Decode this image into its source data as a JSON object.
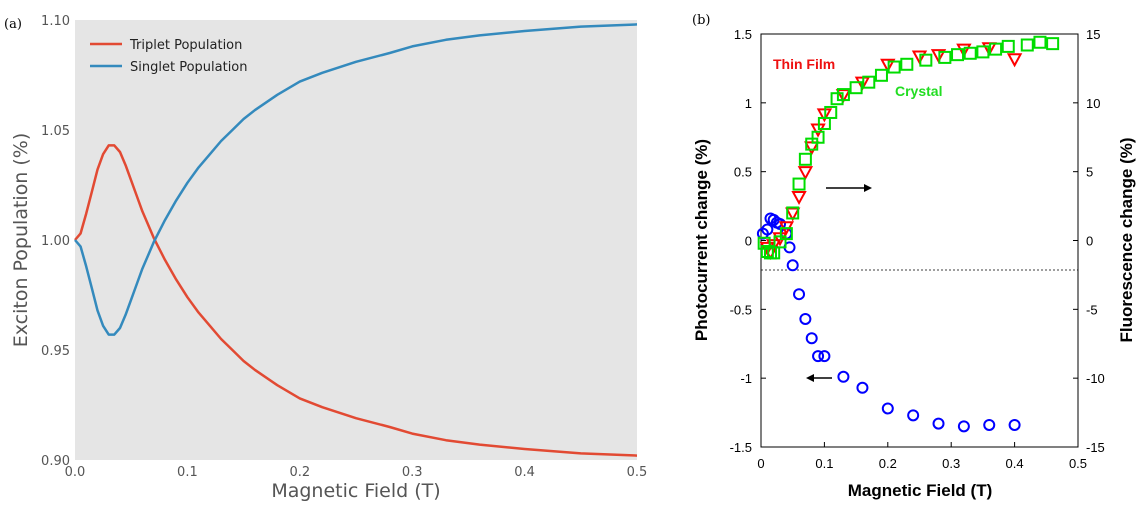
{
  "chart_data": [
    {
      "panel_label": "(a)",
      "type": "line",
      "xlabel": "Magnetic Field (T)",
      "ylabel": "Exciton Population (%)",
      "xlim": [
        0.0,
        0.5
      ],
      "ylim": [
        0.9,
        1.1
      ],
      "xticks": [
        "0.0",
        "0.1",
        "0.2",
        "0.3",
        "0.4",
        "0.5"
      ],
      "yticks": [
        "0.90",
        "0.95",
        "1.00",
        "1.05",
        "1.10"
      ],
      "grid": false,
      "background": "#e5e5e5",
      "legend_position": "top-left",
      "series": [
        {
          "name": "Triplet Population",
          "color": "#e24a33",
          "x": [
            0.0,
            0.005,
            0.01,
            0.015,
            0.02,
            0.025,
            0.03,
            0.035,
            0.04,
            0.045,
            0.05,
            0.055,
            0.06,
            0.065,
            0.07,
            0.075,
            0.08,
            0.09,
            0.1,
            0.11,
            0.12,
            0.13,
            0.14,
            0.15,
            0.16,
            0.18,
            0.2,
            0.22,
            0.25,
            0.28,
            0.3,
            0.33,
            0.36,
            0.4,
            0.45,
            0.5
          ],
          "y": [
            1.0,
            1.003,
            1.012,
            1.022,
            1.032,
            1.039,
            1.043,
            1.043,
            1.04,
            1.034,
            1.027,
            1.02,
            1.013,
            1.007,
            1.001,
            0.996,
            0.991,
            0.982,
            0.974,
            0.967,
            0.961,
            0.955,
            0.95,
            0.945,
            0.941,
            0.934,
            0.928,
            0.924,
            0.919,
            0.915,
            0.912,
            0.909,
            0.907,
            0.905,
            0.903,
            0.902
          ]
        },
        {
          "name": "Singlet Population",
          "color": "#348abd",
          "x": [
            0.0,
            0.005,
            0.01,
            0.015,
            0.02,
            0.025,
            0.03,
            0.035,
            0.04,
            0.045,
            0.05,
            0.055,
            0.06,
            0.065,
            0.07,
            0.075,
            0.08,
            0.09,
            0.1,
            0.11,
            0.12,
            0.13,
            0.14,
            0.15,
            0.16,
            0.18,
            0.2,
            0.22,
            0.25,
            0.28,
            0.3,
            0.33,
            0.36,
            0.4,
            0.45,
            0.5
          ],
          "y": [
            1.0,
            0.997,
            0.988,
            0.978,
            0.968,
            0.961,
            0.957,
            0.957,
            0.96,
            0.966,
            0.973,
            0.98,
            0.987,
            0.993,
            0.999,
            1.004,
            1.009,
            1.018,
            1.026,
            1.033,
            1.039,
            1.045,
            1.05,
            1.055,
            1.059,
            1.066,
            1.072,
            1.076,
            1.081,
            1.085,
            1.088,
            1.091,
            1.093,
            1.095,
            1.097,
            1.098
          ]
        }
      ]
    },
    {
      "panel_label": "(b)",
      "type": "scatter",
      "xlabel": "Magnetic Field (T)",
      "ylabel": "Photocurrent change (%)",
      "y2label": "Fluorescence change (%)",
      "xlim": [
        0,
        0.5
      ],
      "ylim": [
        -1.5,
        1.5
      ],
      "y2lim": [
        -15,
        15
      ],
      "xticks": [
        "0",
        "0.1",
        "0.2",
        "0.3",
        "0.4",
        "0.5"
      ],
      "yticks": [
        "-1.5",
        "-1",
        "-0.5",
        "0",
        "0.5",
        "1",
        "1.5"
      ],
      "y2ticks": [
        "-15",
        "-10",
        "-5",
        "0",
        "5",
        "10",
        "15"
      ],
      "zero_line": true,
      "annotations": {
        "thin_film": "Thin Film",
        "crystal": "Crystal"
      },
      "series": [
        {
          "name": "Photocurrent",
          "marker": "circle",
          "color": "#0000ff",
          "axis": "left",
          "x": [
            0.003,
            0.01,
            0.015,
            0.02,
            0.025,
            0.03,
            0.04,
            0.045,
            0.05,
            0.06,
            0.07,
            0.08,
            0.09,
            0.1,
            0.13,
            0.16,
            0.2,
            0.24,
            0.28,
            0.32,
            0.36,
            0.4
          ],
          "y": [
            0.05,
            0.08,
            0.16,
            0.15,
            0.13,
            0.12,
            0.05,
            -0.05,
            -0.18,
            -0.39,
            -0.57,
            -0.71,
            -0.84,
            -0.84,
            -0.99,
            -1.07,
            -1.22,
            -1.27,
            -1.33,
            -1.35,
            -1.34,
            -1.34
          ]
        },
        {
          "name": "Thin Film",
          "marker": "triangle-down",
          "color": "#ff0000",
          "axis": "right",
          "x": [
            0.01,
            0.015,
            0.02,
            0.03,
            0.04,
            0.05,
            0.06,
            0.07,
            0.08,
            0.09,
            0.1,
            0.13,
            0.16,
            0.2,
            0.25,
            0.28,
            0.32,
            0.36,
            0.4
          ],
          "y": [
            -0.5,
            -0.8,
            -0.3,
            0.2,
            1.0,
            2.0,
            3.2,
            5.0,
            6.8,
            8.1,
            9.2,
            10.6,
            11.5,
            12.8,
            13.4,
            13.5,
            13.9,
            14.0,
            13.2
          ]
        },
        {
          "name": "Crystal",
          "marker": "square",
          "color": "#00dd00",
          "axis": "right",
          "x": [
            0.005,
            0.01,
            0.015,
            0.02,
            0.03,
            0.04,
            0.05,
            0.06,
            0.07,
            0.08,
            0.09,
            0.1,
            0.11,
            0.12,
            0.13,
            0.15,
            0.17,
            0.19,
            0.21,
            0.23,
            0.26,
            0.29,
            0.31,
            0.33,
            0.35,
            0.37,
            0.39,
            0.42,
            0.44,
            0.46
          ],
          "y": [
            -0.2,
            -0.8,
            -0.9,
            -0.9,
            -0.1,
            0.5,
            2.0,
            4.1,
            5.9,
            7.0,
            7.5,
            8.5,
            9.3,
            10.3,
            10.6,
            11.1,
            11.5,
            12.0,
            12.6,
            12.8,
            13.1,
            13.3,
            13.5,
            13.6,
            13.7,
            13.9,
            14.1,
            14.2,
            14.4,
            14.3
          ]
        }
      ]
    }
  ]
}
